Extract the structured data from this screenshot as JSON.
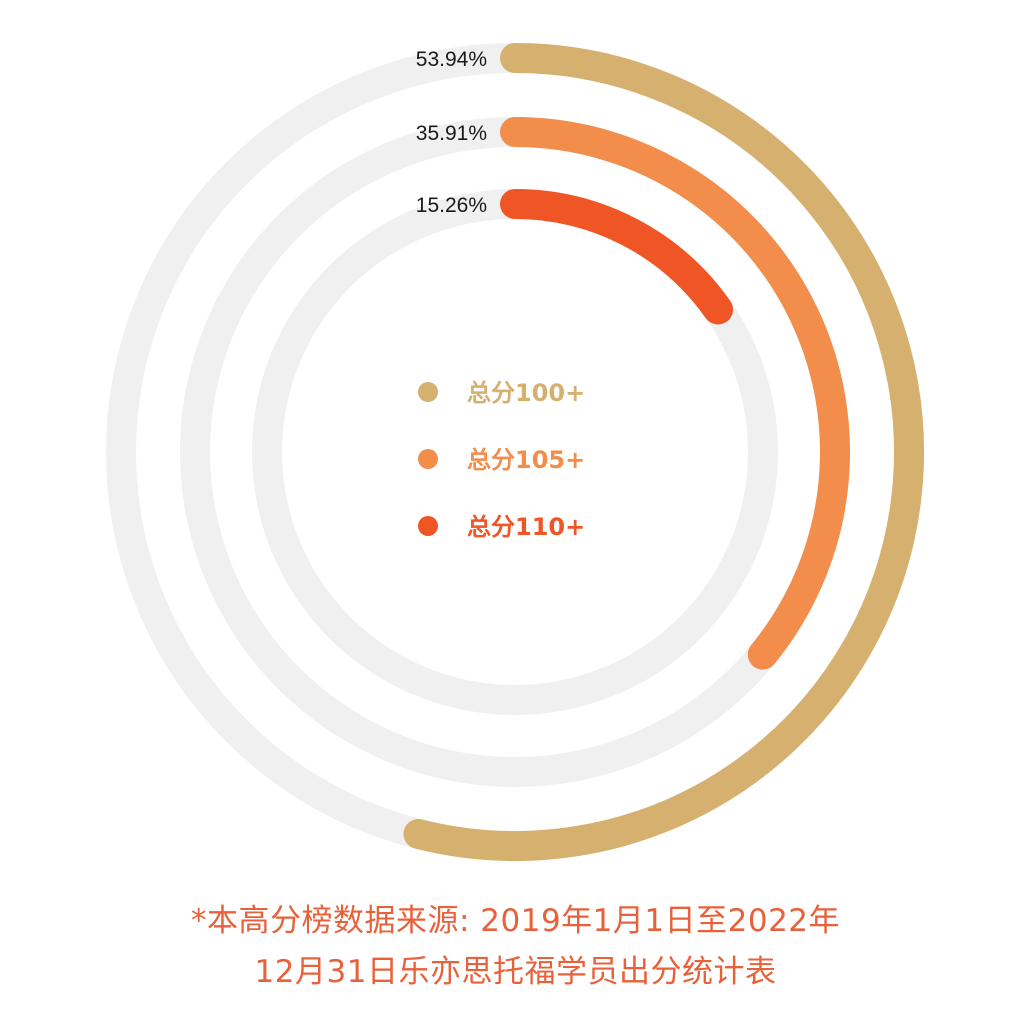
{
  "chart_data": {
    "type": "radial-bar",
    "series": [
      {
        "name": "总分100+",
        "value": 53.94,
        "label": "53.94%",
        "color": "#d5b06f"
      },
      {
        "name": "总分105+",
        "value": 35.91,
        "label": "35.91%",
        "color": "#f28d4c"
      },
      {
        "name": "总分110+",
        "value": 15.26,
        "label": "15.26%",
        "color": "#ef5525"
      }
    ],
    "max": 100,
    "track_color": "#f0f0f0",
    "legend_placement": "center"
  },
  "footnote": {
    "line1": "*本高分榜数据来源: 2019年1月1日至2022年",
    "line2": "12月31日乐亦思托福学员出分统计表",
    "color": "#e8613a"
  }
}
